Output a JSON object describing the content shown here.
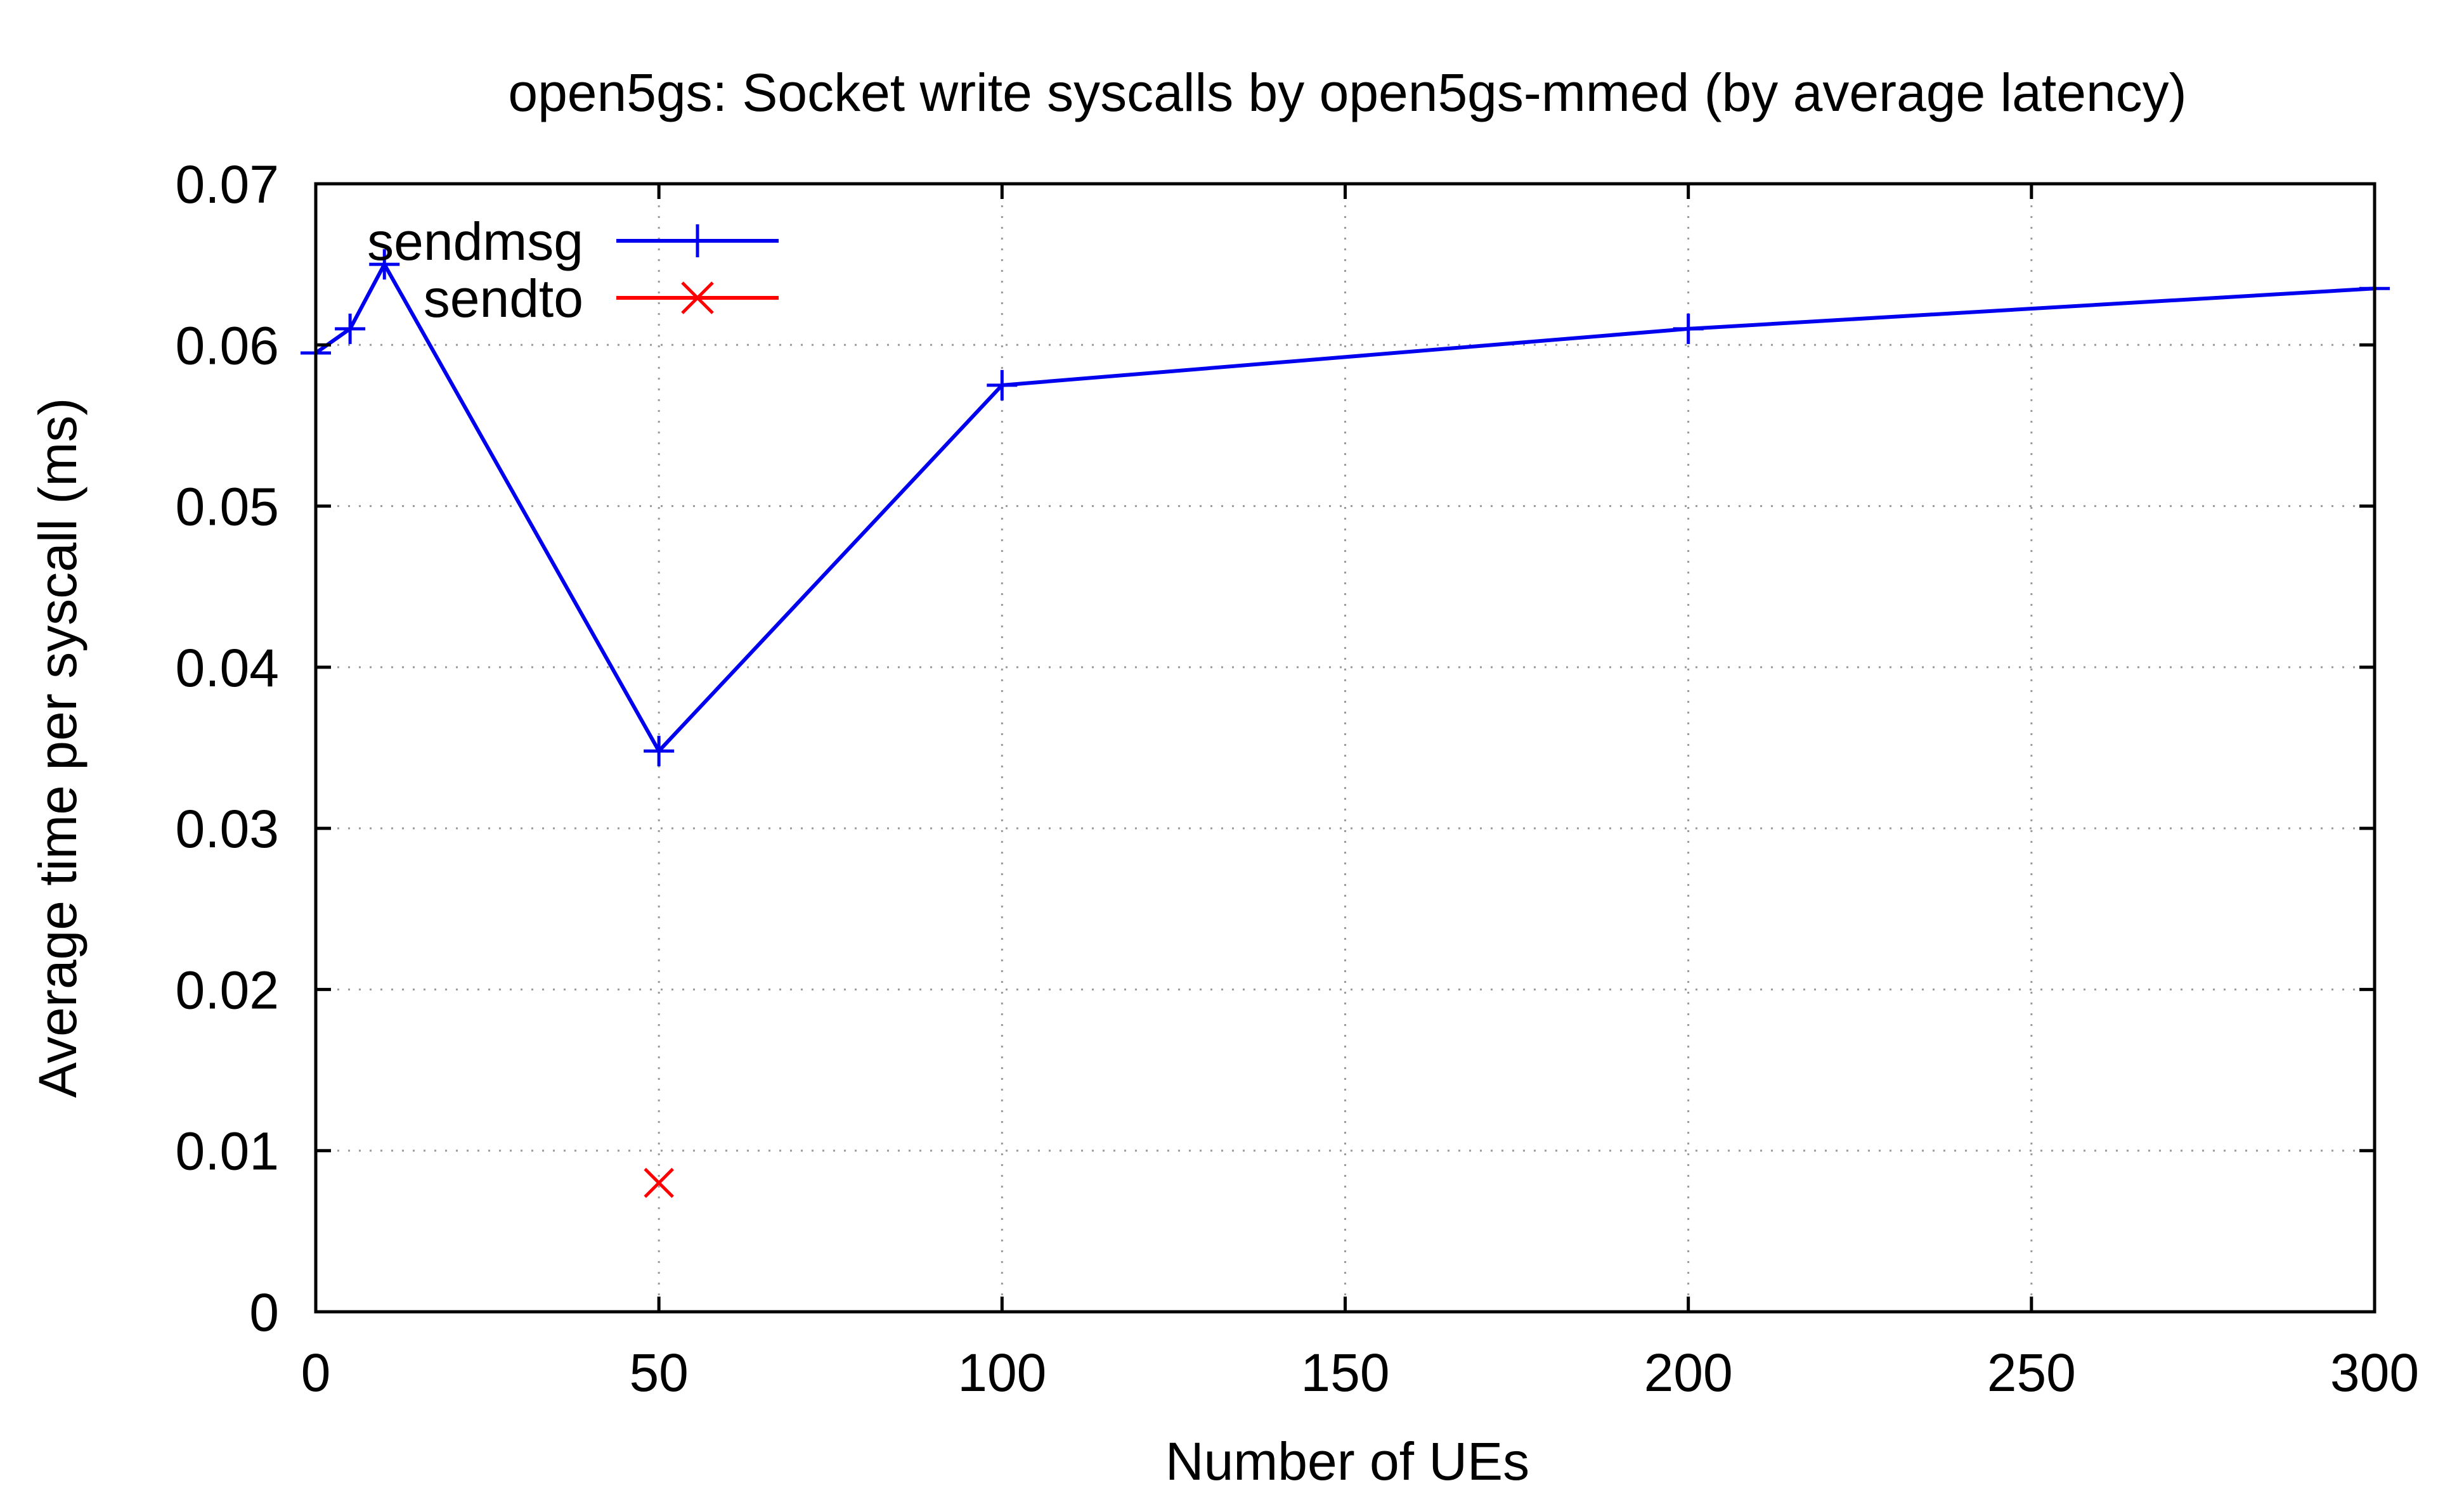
{
  "chart_data": {
    "type": "line",
    "title": "open5gs: Socket write syscalls by open5gs-mmed (by average latency)",
    "xlabel": "Number of UEs",
    "ylabel": "Average time per syscall (ms)",
    "xlim": [
      0,
      300
    ],
    "ylim": [
      0,
      0.07
    ],
    "xticks": [
      0,
      50,
      100,
      150,
      200,
      250,
      300
    ],
    "yticks": [
      0,
      0.01,
      0.02,
      0.03,
      0.04,
      0.05,
      0.06,
      0.07
    ],
    "xtick_labels": [
      "0",
      "50",
      "100",
      "150",
      "200",
      "250",
      "300"
    ],
    "ytick_labels": [
      "0",
      "0.01",
      "0.02",
      "0.03",
      "0.04",
      "0.05",
      "0.06",
      "0.07"
    ],
    "grid": true,
    "legend_position": "top-left",
    "series": [
      {
        "name": "sendmsg",
        "color": "#0000ee",
        "marker": "plus",
        "line": true,
        "points": [
          {
            "x": 0,
            "y": 0.0595
          },
          {
            "x": 5,
            "y": 0.061
          },
          {
            "x": 10,
            "y": 0.065
          },
          {
            "x": 50,
            "y": 0.0348
          },
          {
            "x": 100,
            "y": 0.0575
          },
          {
            "x": 200,
            "y": 0.061
          },
          {
            "x": 300,
            "y": 0.0635
          }
        ]
      },
      {
        "name": "sendto",
        "color": "#ff0000",
        "marker": "cross",
        "line": false,
        "points": [
          {
            "x": 50,
            "y": 0.008
          }
        ]
      }
    ]
  }
}
